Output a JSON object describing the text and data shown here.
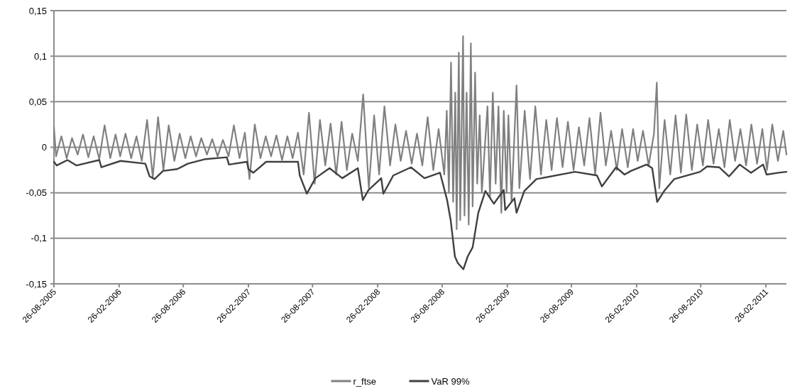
{
  "chart_data": {
    "type": "line",
    "grid": "y",
    "legend": "bottom",
    "xlim": [
      "2005-08-26",
      "2011-04-25"
    ],
    "ylim": [
      -0.15,
      0.15
    ],
    "yticks": [
      {
        "value": -0.15,
        "label": "-0,15"
      },
      {
        "value": -0.1,
        "label": "-0,1"
      },
      {
        "value": -0.05,
        "label": "-0,05"
      },
      0,
      {
        "value": 0.05,
        "label": "0,05"
      },
      {
        "value": 0.1,
        "label": "0,1"
      },
      {
        "value": 0.15,
        "label": "0,15"
      }
    ],
    "xticks": [
      {
        "value": "2005-08-26",
        "label": "26-08-2005"
      },
      {
        "value": "2006-02-26",
        "label": "26-02-2006"
      },
      {
        "value": "2006-08-26",
        "label": "26-08-2006"
      },
      {
        "value": "2007-02-26",
        "label": "26-02-2007"
      },
      {
        "value": "2007-08-26",
        "label": "26-08-2007"
      },
      {
        "value": "2008-02-26",
        "label": "26-02-2008"
      },
      {
        "value": "2008-08-26",
        "label": "26-08-2008"
      },
      {
        "value": "2009-02-26",
        "label": "26-02-2009"
      },
      {
        "value": "2009-08-26",
        "label": "26-08-2009"
      },
      {
        "value": "2010-02-26",
        "label": "26-02-2010"
      },
      {
        "value": "2010-08-26",
        "label": "26-08-2010"
      },
      {
        "value": "2011-02-26",
        "label": "26-02-2011"
      }
    ],
    "series": [
      {
        "name": "r_ftse",
        "color": "#808080",
        "x": [
          "2005-08-26",
          "2005-09-01",
          "2005-09-16",
          "2005-10-01",
          "2005-10-16",
          "2005-11-01",
          "2005-11-16",
          "2005-12-01",
          "2005-12-16",
          "2006-01-01",
          "2006-01-16",
          "2006-02-01",
          "2006-02-16",
          "2006-03-01",
          "2006-03-16",
          "2006-04-01",
          "2006-04-16",
          "2006-05-01",
          "2006-05-16",
          "2006-06-01",
          "2006-06-16",
          "2006-07-01",
          "2006-07-16",
          "2006-08-01",
          "2006-08-16",
          "2006-09-01",
          "2006-09-16",
          "2006-10-01",
          "2006-10-16",
          "2006-11-01",
          "2006-11-16",
          "2006-12-01",
          "2006-12-16",
          "2007-01-01",
          "2007-01-16",
          "2007-02-01",
          "2007-02-16",
          "2007-03-01",
          "2007-03-16",
          "2007-04-01",
          "2007-04-16",
          "2007-05-01",
          "2007-05-16",
          "2007-06-01",
          "2007-06-16",
          "2007-07-01",
          "2007-07-16",
          "2007-08-01",
          "2007-08-16",
          "2007-09-01",
          "2007-09-16",
          "2007-10-01",
          "2007-10-16",
          "2007-11-01",
          "2007-11-16",
          "2007-12-01",
          "2007-12-16",
          "2008-01-01",
          "2008-01-16",
          "2008-02-01",
          "2008-02-16",
          "2008-03-01",
          "2008-03-16",
          "2008-04-01",
          "2008-04-16",
          "2008-05-01",
          "2008-05-16",
          "2008-06-01",
          "2008-06-16",
          "2008-07-01",
          "2008-07-16",
          "2008-08-01",
          "2008-08-16",
          "2008-09-01",
          "2008-09-08",
          "2008-09-14",
          "2008-09-20",
          "2008-09-26",
          "2008-10-02",
          "2008-10-06",
          "2008-10-12",
          "2008-10-16",
          "2008-10-24",
          "2008-10-28",
          "2008-11-03",
          "2008-11-09",
          "2008-11-15",
          "2008-11-20",
          "2008-11-27",
          "2008-12-03",
          "2008-12-10",
          "2008-12-16",
          "2009-01-01",
          "2009-01-08",
          "2009-01-16",
          "2009-01-24",
          "2009-02-01",
          "2009-02-09",
          "2009-02-16",
          "2009-02-24",
          "2009-03-01",
          "2009-03-10",
          "2009-03-24",
          "2009-04-01",
          "2009-04-16",
          "2009-05-01",
          "2009-05-16",
          "2009-06-01",
          "2009-06-16",
          "2009-07-01",
          "2009-07-16",
          "2009-08-01",
          "2009-08-16",
          "2009-09-01",
          "2009-09-16",
          "2009-10-01",
          "2009-10-16",
          "2009-11-01",
          "2009-11-16",
          "2009-12-01",
          "2009-12-16",
          "2010-01-01",
          "2010-01-16",
          "2010-02-01",
          "2010-02-16",
          "2010-03-01",
          "2010-03-16",
          "2010-04-01",
          "2010-04-16",
          "2010-04-24",
          "2010-05-01",
          "2010-05-16",
          "2010-06-01",
          "2010-06-16",
          "2010-07-01",
          "2010-07-16",
          "2010-08-01",
          "2010-08-16",
          "2010-09-01",
          "2010-09-16",
          "2010-10-01",
          "2010-10-16",
          "2010-11-01",
          "2010-11-16",
          "2010-12-01",
          "2010-12-16",
          "2011-01-01",
          "2011-01-16",
          "2011-02-01",
          "2011-02-16",
          "2011-03-01",
          "2011-03-16",
          "2011-04-01",
          "2011-04-16",
          "2011-04-25"
        ],
        "values": [
          0.022,
          -0.01,
          0.012,
          -0.012,
          0.01,
          -0.008,
          0.014,
          -0.011,
          0.012,
          -0.013,
          0.024,
          -0.012,
          0.014,
          -0.01,
          0.015,
          -0.012,
          0.012,
          -0.015,
          0.03,
          -0.033,
          0.033,
          -0.025,
          0.024,
          -0.015,
          0.015,
          -0.012,
          0.012,
          -0.01,
          0.01,
          -0.008,
          0.009,
          -0.01,
          0.008,
          -0.01,
          0.024,
          -0.012,
          0.016,
          -0.035,
          0.025,
          -0.012,
          0.012,
          -0.01,
          0.013,
          -0.014,
          0.012,
          -0.012,
          0.016,
          -0.03,
          0.038,
          -0.04,
          0.03,
          -0.02,
          0.026,
          -0.03,
          0.028,
          -0.025,
          0.015,
          -0.015,
          0.058,
          -0.045,
          0.035,
          -0.03,
          0.045,
          -0.02,
          0.025,
          -0.015,
          0.018,
          -0.018,
          0.015,
          -0.02,
          0.033,
          -0.025,
          0.02,
          -0.03,
          0.04,
          -0.05,
          0.093,
          -0.06,
          0.06,
          -0.09,
          0.104,
          -0.08,
          0.122,
          -0.075,
          0.06,
          -0.085,
          0.114,
          -0.065,
          0.082,
          -0.04,
          0.035,
          -0.05,
          0.045,
          -0.055,
          0.06,
          -0.04,
          0.045,
          -0.072,
          0.04,
          -0.05,
          0.035,
          -0.06,
          0.068,
          -0.045,
          0.04,
          -0.035,
          0.045,
          -0.03,
          0.03,
          -0.025,
          0.032,
          -0.022,
          0.028,
          -0.025,
          0.022,
          -0.02,
          0.032,
          -0.03,
          0.038,
          -0.02,
          0.018,
          -0.025,
          0.02,
          -0.022,
          0.02,
          -0.015,
          0.018,
          -0.02,
          0.015,
          0.071,
          -0.045,
          0.03,
          -0.03,
          0.035,
          -0.028,
          0.036,
          -0.025,
          0.025,
          -0.02,
          0.03,
          -0.018,
          0.02,
          -0.022,
          0.03,
          -0.015,
          0.02,
          -0.02,
          0.025,
          -0.018,
          0.02,
          -0.025,
          0.025,
          -0.015,
          0.018,
          -0.008
        ]
      },
      {
        "name": "VaR 99%",
        "color": "#404040",
        "x": [
          "2005-08-26",
          "2005-09-03",
          "2005-10-03",
          "2005-10-29",
          "2006-01-01",
          "2006-01-07",
          "2006-03-02",
          "2006-05-11",
          "2006-05-23",
          "2006-06-06",
          "2006-06-30",
          "2006-08-09",
          "2006-09-08",
          "2006-10-28",
          "2006-12-27",
          "2007-01-02",
          "2007-02-22",
          "2007-02-26",
          "2007-03-12",
          "2007-04-17",
          "2007-07-16",
          "2007-07-21",
          "2007-08-10",
          "2007-09-03",
          "2007-10-13",
          "2007-11-18",
          "2008-01-01",
          "2008-01-15",
          "2008-01-31",
          "2008-03-07",
          "2008-03-13",
          "2008-04-10",
          "2008-05-30",
          "2008-07-07",
          "2008-08-20",
          "2008-09-09",
          "2008-09-19",
          "2008-10-01",
          "2008-10-09",
          "2008-10-25",
          "2008-11-06",
          "2008-11-20",
          "2008-12-06",
          "2008-12-26",
          "2009-01-19",
          "2009-02-16",
          "2009-02-20",
          "2009-03-18",
          "2009-03-24",
          "2009-04-15",
          "2009-05-19",
          "2009-09-05",
          "2009-11-06",
          "2009-11-20",
          "2009-12-30",
          "2010-01-23",
          "2010-02-10",
          "2010-03-26",
          "2010-04-11",
          "2010-04-25",
          "2010-05-15",
          "2010-06-12",
          "2010-08-24",
          "2010-09-13",
          "2010-10-17",
          "2010-11-14",
          "2010-12-14",
          "2011-01-15",
          "2011-02-18",
          "2011-02-28",
          "2011-04-03",
          "2011-04-25"
        ],
        "values": [
          -0.016,
          -0.02,
          -0.014,
          -0.02,
          -0.014,
          -0.022,
          -0.015,
          -0.018,
          -0.032,
          -0.035,
          -0.026,
          -0.024,
          -0.018,
          -0.013,
          -0.011,
          -0.019,
          -0.016,
          -0.024,
          -0.028,
          -0.016,
          -0.016,
          -0.031,
          -0.051,
          -0.034,
          -0.023,
          -0.034,
          -0.023,
          -0.058,
          -0.047,
          -0.034,
          -0.051,
          -0.031,
          -0.022,
          -0.034,
          -0.028,
          -0.058,
          -0.08,
          -0.12,
          -0.127,
          -0.134,
          -0.12,
          -0.11,
          -0.072,
          -0.048,
          -0.062,
          -0.047,
          -0.069,
          -0.056,
          -0.072,
          -0.048,
          -0.035,
          -0.027,
          -0.031,
          -0.043,
          -0.022,
          -0.03,
          -0.026,
          -0.019,
          -0.023,
          -0.06,
          -0.048,
          -0.035,
          -0.027,
          -0.021,
          -0.022,
          -0.032,
          -0.019,
          -0.028,
          -0.019,
          -0.03,
          -0.028,
          -0.027
        ]
      }
    ]
  }
}
